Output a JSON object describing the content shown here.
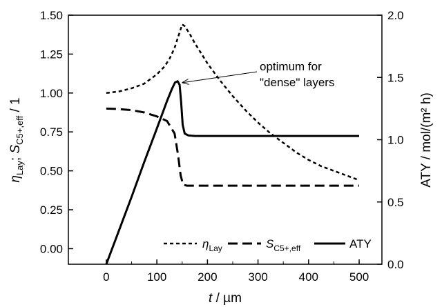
{
  "chart_data": {
    "type": "line",
    "xlabel": {
      "symbol": "t",
      "unit": " / µm"
    },
    "ylabel_left": {
      "eta": "η",
      "eta_sub": "Lay",
      "sep": "; ",
      "s": "S",
      "s_sub": "C5+,eff",
      "unit": " / 1"
    },
    "ylabel_right": "ATY / mol/(m² h)",
    "xlim": [
      -75,
      545
    ],
    "ylim_left": [
      -0.1,
      1.5
    ],
    "ylim_right": [
      0,
      2.0
    ],
    "x_ticks": [
      0,
      100,
      200,
      300,
      400,
      500
    ],
    "y_left_ticks": [
      "0.00",
      "0.25",
      "0.50",
      "0.75",
      "1.00",
      "1.25",
      "1.50"
    ],
    "y_right_ticks": [
      "0.0",
      "0.5",
      "1.0",
      "1.5",
      "2.0"
    ],
    "annotation": {
      "lines": [
        "optimum for",
        "\"dense\" layers"
      ],
      "target": [
        140,
        1.47
      ]
    },
    "series": [
      {
        "name": "η_Lay",
        "label": {
          "symbol": "η",
          "sub": "Lay"
        },
        "axis": "left",
        "style": "dotted",
        "x": [
          0,
          25,
          50,
          75,
          100,
          115,
          125,
          135,
          142,
          150,
          155,
          165,
          175,
          200,
          225,
          250,
          275,
          300,
          325,
          350,
          375,
          400,
          425,
          450,
          475,
          500
        ],
        "y": [
          1.0,
          1.01,
          1.03,
          1.06,
          1.12,
          1.17,
          1.22,
          1.29,
          1.36,
          1.44,
          1.43,
          1.38,
          1.32,
          1.19,
          1.08,
          0.98,
          0.89,
          0.81,
          0.74,
          0.68,
          0.62,
          0.57,
          0.53,
          0.5,
          0.47,
          0.44
        ]
      },
      {
        "name": "S_C5+,eff",
        "label": {
          "symbol": "S",
          "sub": "C5+,eff"
        },
        "axis": "left",
        "style": "dashed",
        "x": [
          0,
          25,
          50,
          75,
          100,
          120,
          135,
          142,
          147,
          152,
          160,
          200,
          300,
          400,
          500
        ],
        "y": [
          0.9,
          0.897,
          0.89,
          0.875,
          0.85,
          0.82,
          0.74,
          0.6,
          0.47,
          0.41,
          0.405,
          0.405,
          0.405,
          0.405,
          0.405
        ]
      },
      {
        "name": "ATY",
        "label": {
          "text": "ATY"
        },
        "axis": "right",
        "style": "solid",
        "x": [
          0,
          25,
          50,
          75,
          100,
          120,
          130,
          136,
          141,
          145,
          148,
          151,
          155,
          162,
          175,
          200,
          300,
          400,
          500
        ],
        "y": [
          0.0,
          0.27,
          0.54,
          0.82,
          1.09,
          1.31,
          1.41,
          1.46,
          1.47,
          1.44,
          1.3,
          1.12,
          1.05,
          1.035,
          1.03,
          1.03,
          1.03,
          1.03,
          1.03
        ]
      }
    ]
  }
}
